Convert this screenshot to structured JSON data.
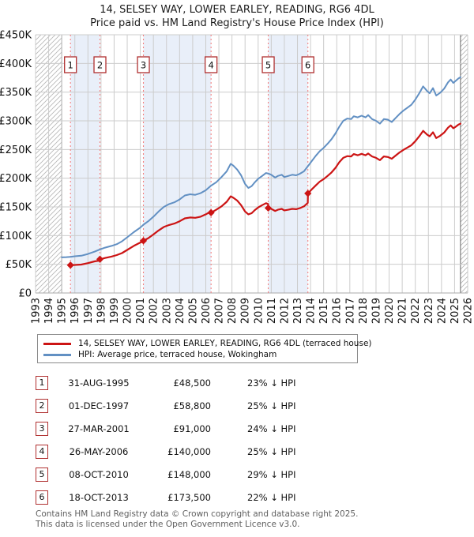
{
  "title": {
    "line1": "14, SELSEY WAY, LOWER EARLEY, READING, RG6 4DL",
    "line2": "Price paid vs. HM Land Registry's House Price Index (HPI)"
  },
  "legend": {
    "entries": [
      {
        "label": "14, SELSEY WAY, LOWER EARLEY, READING, RG6 4DL (terraced house)",
        "color": "#cc1414"
      },
      {
        "label": "HPI: Average price, terraced house, Wokingham",
        "color": "#6290c3"
      }
    ]
  },
  "footer": {
    "line1": "Contains HM Land Registry data © Crown copyright and database right 2025.",
    "line2": "This data is licensed under the Open Government Licence v3.0."
  },
  "chart_data": {
    "type": "line",
    "title": "Price paid vs. HM Land Registry's House Price Index (HPI)",
    "xlabel": "",
    "ylabel": "",
    "units": "thousands of £ (K)",
    "x_range": [
      1993,
      2026
    ],
    "ylim_k": [
      0,
      450
    ],
    "y_ticks": {
      "values_k": [
        0,
        50,
        100,
        150,
        200,
        250,
        300,
        350,
        400,
        450
      ],
      "labels": [
        "£0",
        "£50K",
        "£100K",
        "£150K",
        "£200K",
        "£250K",
        "£300K",
        "£350K",
        "£400K",
        "£450K"
      ]
    },
    "grid": true,
    "legend_position": "below",
    "hatch_regions": [
      [
        1993,
        1995.0
      ],
      [
        2025.45,
        2026
      ]
    ],
    "ownership_bands": [
      [
        1995.666,
        1997.917
      ],
      [
        2001.236,
        2006.403
      ],
      [
        2010.769,
        2013.797
      ]
    ],
    "colors": {
      "price_line": "#cc1414",
      "hpi_line": "#6290c3",
      "band": "#e9eff9",
      "dashed_vline": "#f28080",
      "grid": "#cccccc",
      "hatch": "#b5b5b5",
      "hatch_edge": "#666666",
      "marker_box_border": "#b03030"
    },
    "series": [
      {
        "name": "HPI: Average price, terraced house, Wokingham",
        "color": "#6290c3",
        "points": [
          [
            1995.0,
            62
          ],
          [
            1995.35,
            62.5
          ],
          [
            1995.67,
            63
          ],
          [
            1996.0,
            64
          ],
          [
            1996.5,
            65
          ],
          [
            1997.0,
            68
          ],
          [
            1997.5,
            72
          ],
          [
            1997.92,
            76
          ],
          [
            1998.3,
            79
          ],
          [
            1998.8,
            82
          ],
          [
            1999.2,
            85
          ],
          [
            1999.6,
            90
          ],
          [
            2000.0,
            97
          ],
          [
            2000.5,
            106
          ],
          [
            2001.0,
            114
          ],
          [
            2001.24,
            119
          ],
          [
            2001.6,
            125
          ],
          [
            2002.0,
            133
          ],
          [
            2002.4,
            142
          ],
          [
            2002.8,
            150
          ],
          [
            2003.2,
            155
          ],
          [
            2003.6,
            158
          ],
          [
            2004.0,
            163
          ],
          [
            2004.4,
            170
          ],
          [
            2004.8,
            172
          ],
          [
            2005.2,
            171
          ],
          [
            2005.6,
            174
          ],
          [
            2006.0,
            179
          ],
          [
            2006.4,
            187
          ],
          [
            2006.8,
            193
          ],
          [
            2007.2,
            202
          ],
          [
            2007.6,
            212
          ],
          [
            2007.9,
            225
          ],
          [
            2008.1,
            222
          ],
          [
            2008.4,
            215
          ],
          [
            2008.7,
            205
          ],
          [
            2009.0,
            190
          ],
          [
            2009.25,
            183
          ],
          [
            2009.5,
            186
          ],
          [
            2009.75,
            193
          ],
          [
            2010.0,
            199
          ],
          [
            2010.3,
            204
          ],
          [
            2010.6,
            209
          ],
          [
            2010.8,
            208
          ],
          [
            2011.0,
            206
          ],
          [
            2011.3,
            201
          ],
          [
            2011.5,
            204
          ],
          [
            2011.8,
            206
          ],
          [
            2012.0,
            202
          ],
          [
            2012.3,
            204
          ],
          [
            2012.6,
            206
          ],
          [
            2012.9,
            205
          ],
          [
            2013.2,
            208
          ],
          [
            2013.5,
            212
          ],
          [
            2013.8,
            221
          ],
          [
            2014.1,
            230
          ],
          [
            2014.4,
            239
          ],
          [
            2014.7,
            247
          ],
          [
            2015.0,
            253
          ],
          [
            2015.3,
            260
          ],
          [
            2015.6,
            268
          ],
          [
            2015.9,
            278
          ],
          [
            2016.2,
            290
          ],
          [
            2016.5,
            300
          ],
          [
            2016.8,
            304
          ],
          [
            2017.1,
            303
          ],
          [
            2017.3,
            308
          ],
          [
            2017.6,
            306
          ],
          [
            2017.9,
            309
          ],
          [
            2018.2,
            306
          ],
          [
            2018.4,
            310
          ],
          [
            2018.7,
            303
          ],
          [
            2019.0,
            300
          ],
          [
            2019.3,
            295
          ],
          [
            2019.6,
            303
          ],
          [
            2019.9,
            302
          ],
          [
            2020.2,
            298
          ],
          [
            2020.5,
            305
          ],
          [
            2020.8,
            312
          ],
          [
            2021.1,
            318
          ],
          [
            2021.4,
            323
          ],
          [
            2021.7,
            328
          ],
          [
            2022.0,
            337
          ],
          [
            2022.3,
            348
          ],
          [
            2022.6,
            360
          ],
          [
            2022.9,
            352
          ],
          [
            2023.1,
            348
          ],
          [
            2023.35,
            357
          ],
          [
            2023.6,
            344
          ],
          [
            2023.9,
            349
          ],
          [
            2024.2,
            356
          ],
          [
            2024.5,
            367
          ],
          [
            2024.7,
            372
          ],
          [
            2024.9,
            366
          ],
          [
            2025.1,
            370
          ],
          [
            2025.3,
            374
          ],
          [
            2025.45,
            376
          ]
        ]
      },
      {
        "name": "14, SELSEY WAY, LOWER EARLEY, READING, RG6 4DL (terraced house)",
        "color": "#cc1414",
        "points": [
          [
            1995.67,
            48.5
          ],
          [
            1996.0,
            48.8
          ],
          [
            1996.5,
            49.5
          ],
          [
            1997.0,
            52
          ],
          [
            1997.5,
            55
          ],
          [
            1997.91,
            56.5
          ],
          [
            1997.92,
            58.8
          ],
          [
            1998.3,
            61
          ],
          [
            1998.8,
            63.5
          ],
          [
            1999.2,
            66
          ],
          [
            1999.6,
            69.5
          ],
          [
            2000.0,
            75
          ],
          [
            2000.5,
            82
          ],
          [
            2001.0,
            88
          ],
          [
            2001.23,
            89.5
          ],
          [
            2001.24,
            91
          ],
          [
            2001.6,
            95.5
          ],
          [
            2002.0,
            102
          ],
          [
            2002.4,
            109
          ],
          [
            2002.8,
            115
          ],
          [
            2003.2,
            118.5
          ],
          [
            2003.6,
            121
          ],
          [
            2004.0,
            125
          ],
          [
            2004.4,
            130
          ],
          [
            2004.8,
            131.5
          ],
          [
            2005.2,
            131
          ],
          [
            2005.6,
            133
          ],
          [
            2006.0,
            137
          ],
          [
            2006.39,
            142
          ],
          [
            2006.41,
            140
          ],
          [
            2006.8,
            145
          ],
          [
            2007.2,
            151
          ],
          [
            2007.6,
            159
          ],
          [
            2007.9,
            168.5
          ],
          [
            2008.1,
            166
          ],
          [
            2008.4,
            161
          ],
          [
            2008.7,
            153
          ],
          [
            2009.0,
            142
          ],
          [
            2009.25,
            137
          ],
          [
            2009.5,
            139
          ],
          [
            2009.75,
            144.5
          ],
          [
            2010.0,
            149
          ],
          [
            2010.3,
            153
          ],
          [
            2010.6,
            156.5
          ],
          [
            2010.76,
            155
          ],
          [
            2010.77,
            148
          ],
          [
            2011.0,
            146.5
          ],
          [
            2011.3,
            143
          ],
          [
            2011.5,
            145
          ],
          [
            2011.8,
            146.5
          ],
          [
            2012.0,
            144
          ],
          [
            2012.3,
            145
          ],
          [
            2012.6,
            146.5
          ],
          [
            2012.9,
            146
          ],
          [
            2013.2,
            148
          ],
          [
            2013.5,
            151
          ],
          [
            2013.79,
            157
          ],
          [
            2013.8,
            173.5
          ],
          [
            2014.1,
            180.5
          ],
          [
            2014.4,
            187.5
          ],
          [
            2014.7,
            194
          ],
          [
            2015.0,
            198.5
          ],
          [
            2015.3,
            204
          ],
          [
            2015.6,
            210
          ],
          [
            2015.9,
            218
          ],
          [
            2016.2,
            228
          ],
          [
            2016.5,
            235.5
          ],
          [
            2016.8,
            238.5
          ],
          [
            2017.1,
            238
          ],
          [
            2017.3,
            242
          ],
          [
            2017.6,
            240
          ],
          [
            2017.9,
            242.5
          ],
          [
            2018.2,
            240
          ],
          [
            2018.4,
            243
          ],
          [
            2018.7,
            238
          ],
          [
            2019.0,
            235.5
          ],
          [
            2019.3,
            231.5
          ],
          [
            2019.6,
            238
          ],
          [
            2019.9,
            237
          ],
          [
            2020.2,
            234
          ],
          [
            2020.5,
            239.5
          ],
          [
            2020.8,
            245
          ],
          [
            2021.1,
            249.5
          ],
          [
            2021.4,
            253.5
          ],
          [
            2021.7,
            257.5
          ],
          [
            2022.0,
            264.5
          ],
          [
            2022.3,
            273
          ],
          [
            2022.6,
            282.5
          ],
          [
            2022.9,
            276
          ],
          [
            2023.1,
            273
          ],
          [
            2023.35,
            280
          ],
          [
            2023.6,
            270
          ],
          [
            2023.9,
            274
          ],
          [
            2024.2,
            279.5
          ],
          [
            2024.5,
            288
          ],
          [
            2024.7,
            292
          ],
          [
            2024.9,
            287
          ],
          [
            2025.1,
            290
          ],
          [
            2025.3,
            293.5
          ],
          [
            2025.45,
            295
          ]
        ]
      }
    ],
    "transactions": [
      {
        "num": "1",
        "year": 1995.666,
        "price_k": 48.5,
        "date": "31-AUG-1995",
        "price": "£48,500",
        "vs_hpi": "23% ↓ HPI"
      },
      {
        "num": "2",
        "year": 1997.917,
        "price_k": 58.8,
        "date": "01-DEC-1997",
        "price": "£58,800",
        "vs_hpi": "25% ↓ HPI"
      },
      {
        "num": "3",
        "year": 2001.236,
        "price_k": 91,
        "date": "27-MAR-2001",
        "price": "£91,000",
        "vs_hpi": "24% ↓ HPI"
      },
      {
        "num": "4",
        "year": 2006.403,
        "price_k": 140,
        "date": "26-MAY-2006",
        "price": "£140,000",
        "vs_hpi": "25% ↓ HPI"
      },
      {
        "num": "5",
        "year": 2010.769,
        "price_k": 148,
        "date": "08-OCT-2010",
        "price": "£148,000",
        "vs_hpi": "29% ↓ HPI"
      },
      {
        "num": "6",
        "year": 2013.797,
        "price_k": 173.5,
        "date": "18-OCT-2013",
        "price": "£173,500",
        "vs_hpi": "22% ↓ HPI"
      }
    ]
  }
}
